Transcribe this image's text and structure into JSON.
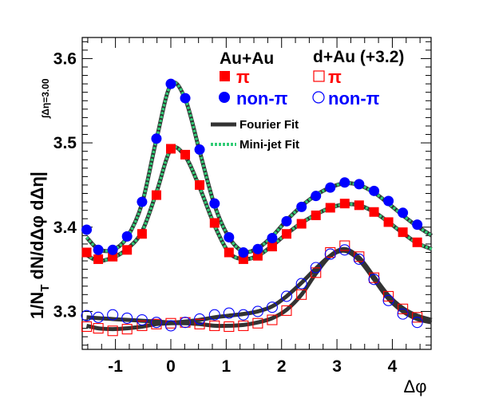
{
  "chart_data": {
    "type": "scatter",
    "title": "",
    "xlabel": "Δφ",
    "ylabel": "1/N",
    "ylabel_sub": "T",
    "ylabel_rest": " dN/dΔφ dΔη|",
    "ylabel_limit": "∫Δη=3.00",
    "xlim": [
      -1.6,
      4.7
    ],
    "ylim": [
      3.255,
      3.625
    ],
    "xticks": [
      -1,
      0,
      1,
      2,
      3,
      4
    ],
    "xtick_labels": [
      "-1",
      "0",
      "1",
      "2",
      "3",
      "4"
    ],
    "yticks": [
      3.3,
      3.4,
      3.5,
      3.6
    ],
    "ytick_labels": [
      "3.3",
      "3.4",
      "3.5",
      "3.6"
    ],
    "grid": false,
    "legend_position": "top-right",
    "legend": {
      "auau_header": "Au+Au",
      "dau_header": "d+Au (+3.2)",
      "pi": "π",
      "nonpi": "non-π",
      "fourier": "Fourier Fit",
      "minijet": "Mini-jet Fit"
    },
    "x": [
      -1.52,
      -1.31,
      -1.05,
      -0.79,
      -0.52,
      -0.26,
      0.0,
      0.26,
      0.52,
      0.79,
      1.05,
      1.31,
      1.57,
      1.83,
      2.09,
      2.36,
      2.62,
      2.88,
      3.14,
      3.4,
      3.67,
      3.93,
      4.19,
      4.45,
      4.71
    ],
    "series": [
      {
        "name": "Au+Au π",
        "color": "#ff0000",
        "marker": "filled-square",
        "values": [
          3.37,
          3.362,
          3.365,
          3.373,
          3.392,
          3.438,
          3.493,
          3.486,
          3.45,
          3.405,
          3.37,
          3.362,
          3.366,
          3.377,
          3.392,
          3.404,
          3.414,
          3.423,
          3.428,
          3.426,
          3.418,
          3.406,
          3.394,
          3.382,
          3.375
        ]
      },
      {
        "name": "Au+Au non-π",
        "color": "#0000ff",
        "marker": "filled-circle",
        "values": [
          3.397,
          3.373,
          3.373,
          3.389,
          3.43,
          3.505,
          3.57,
          3.553,
          3.492,
          3.428,
          3.388,
          3.37,
          3.374,
          3.387,
          3.407,
          3.424,
          3.437,
          3.447,
          3.453,
          3.451,
          3.443,
          3.431,
          3.417,
          3.403,
          3.393
        ]
      },
      {
        "name": "d+Au (+3.2) π",
        "color": "#ff0000",
        "marker": "open-square",
        "values": [
          3.282,
          3.28,
          3.277,
          3.279,
          3.283,
          3.285,
          3.286,
          3.287,
          3.285,
          3.283,
          3.282,
          3.283,
          3.286,
          3.29,
          3.301,
          3.32,
          3.346,
          3.37,
          3.378,
          3.365,
          3.34,
          3.318,
          3.303,
          3.293,
          3.288
        ]
      },
      {
        "name": "d+Au (+3.2) non-π",
        "color": "#0000ff",
        "marker": "open-circle",
        "values": [
          3.295,
          3.293,
          3.296,
          3.292,
          3.29,
          3.287,
          3.283,
          3.287,
          3.291,
          3.296,
          3.298,
          3.296,
          3.3,
          3.305,
          3.318,
          3.333,
          3.352,
          3.368,
          3.373,
          3.362,
          3.338,
          3.313,
          3.297,
          3.287,
          3.284
        ]
      }
    ],
    "fits": [
      {
        "name": "Fourier Fit (Au+Au π)",
        "style": "solid",
        "values": [
          3.367,
          3.36,
          3.364,
          3.374,
          3.395,
          3.441,
          3.492,
          3.484,
          3.447,
          3.402,
          3.37,
          3.362,
          3.366,
          3.378,
          3.392,
          3.405,
          3.415,
          3.423,
          3.427,
          3.426,
          3.418,
          3.406,
          3.393,
          3.381,
          3.374
        ]
      },
      {
        "name": "Fourier Fit (Au+Au non-π)",
        "style": "solid",
        "values": [
          3.388,
          3.374,
          3.373,
          3.388,
          3.428,
          3.504,
          3.569,
          3.552,
          3.49,
          3.426,
          3.388,
          3.371,
          3.375,
          3.389,
          3.408,
          3.425,
          3.438,
          3.447,
          3.452,
          3.45,
          3.441,
          3.428,
          3.414,
          3.401,
          3.39
        ]
      },
      {
        "name": "Fourier Fit (d+Au π)",
        "style": "solid",
        "values": [
          3.283,
          3.28,
          3.279,
          3.28,
          3.282,
          3.285,
          3.286,
          3.286,
          3.285,
          3.283,
          3.283,
          3.284,
          3.287,
          3.292,
          3.302,
          3.32,
          3.345,
          3.366,
          3.374,
          3.364,
          3.341,
          3.319,
          3.304,
          3.295,
          3.29
        ]
      },
      {
        "name": "Fourier Fit (d+Au non-π)",
        "style": "solid",
        "values": [
          3.293,
          3.292,
          3.291,
          3.29,
          3.289,
          3.288,
          3.287,
          3.288,
          3.29,
          3.293,
          3.295,
          3.297,
          3.3,
          3.306,
          3.318,
          3.334,
          3.351,
          3.366,
          3.372,
          3.361,
          3.338,
          3.315,
          3.3,
          3.291,
          3.287
        ]
      },
      {
        "name": "Mini-jet Fit (Au+Au π)",
        "style": "dotted",
        "values": [
          3.367,
          3.36,
          3.364,
          3.374,
          3.395,
          3.441,
          3.492,
          3.484,
          3.447,
          3.402,
          3.37,
          3.362,
          3.366,
          3.378,
          3.392,
          3.405,
          3.415,
          3.423,
          3.427,
          3.426,
          3.418,
          3.406,
          3.393,
          3.381,
          3.374
        ]
      },
      {
        "name": "Mini-jet Fit (Au+Au non-π)",
        "style": "dotted",
        "values": [
          3.388,
          3.374,
          3.373,
          3.388,
          3.428,
          3.504,
          3.569,
          3.552,
          3.49,
          3.426,
          3.388,
          3.371,
          3.375,
          3.389,
          3.408,
          3.425,
          3.438,
          3.447,
          3.452,
          3.45,
          3.441,
          3.428,
          3.414,
          3.401,
          3.39
        ]
      }
    ],
    "colors": {
      "fourier": "#333333",
      "minijet": "#33cc77",
      "pi": "#ff0000",
      "nonpi": "#0000ff"
    }
  }
}
